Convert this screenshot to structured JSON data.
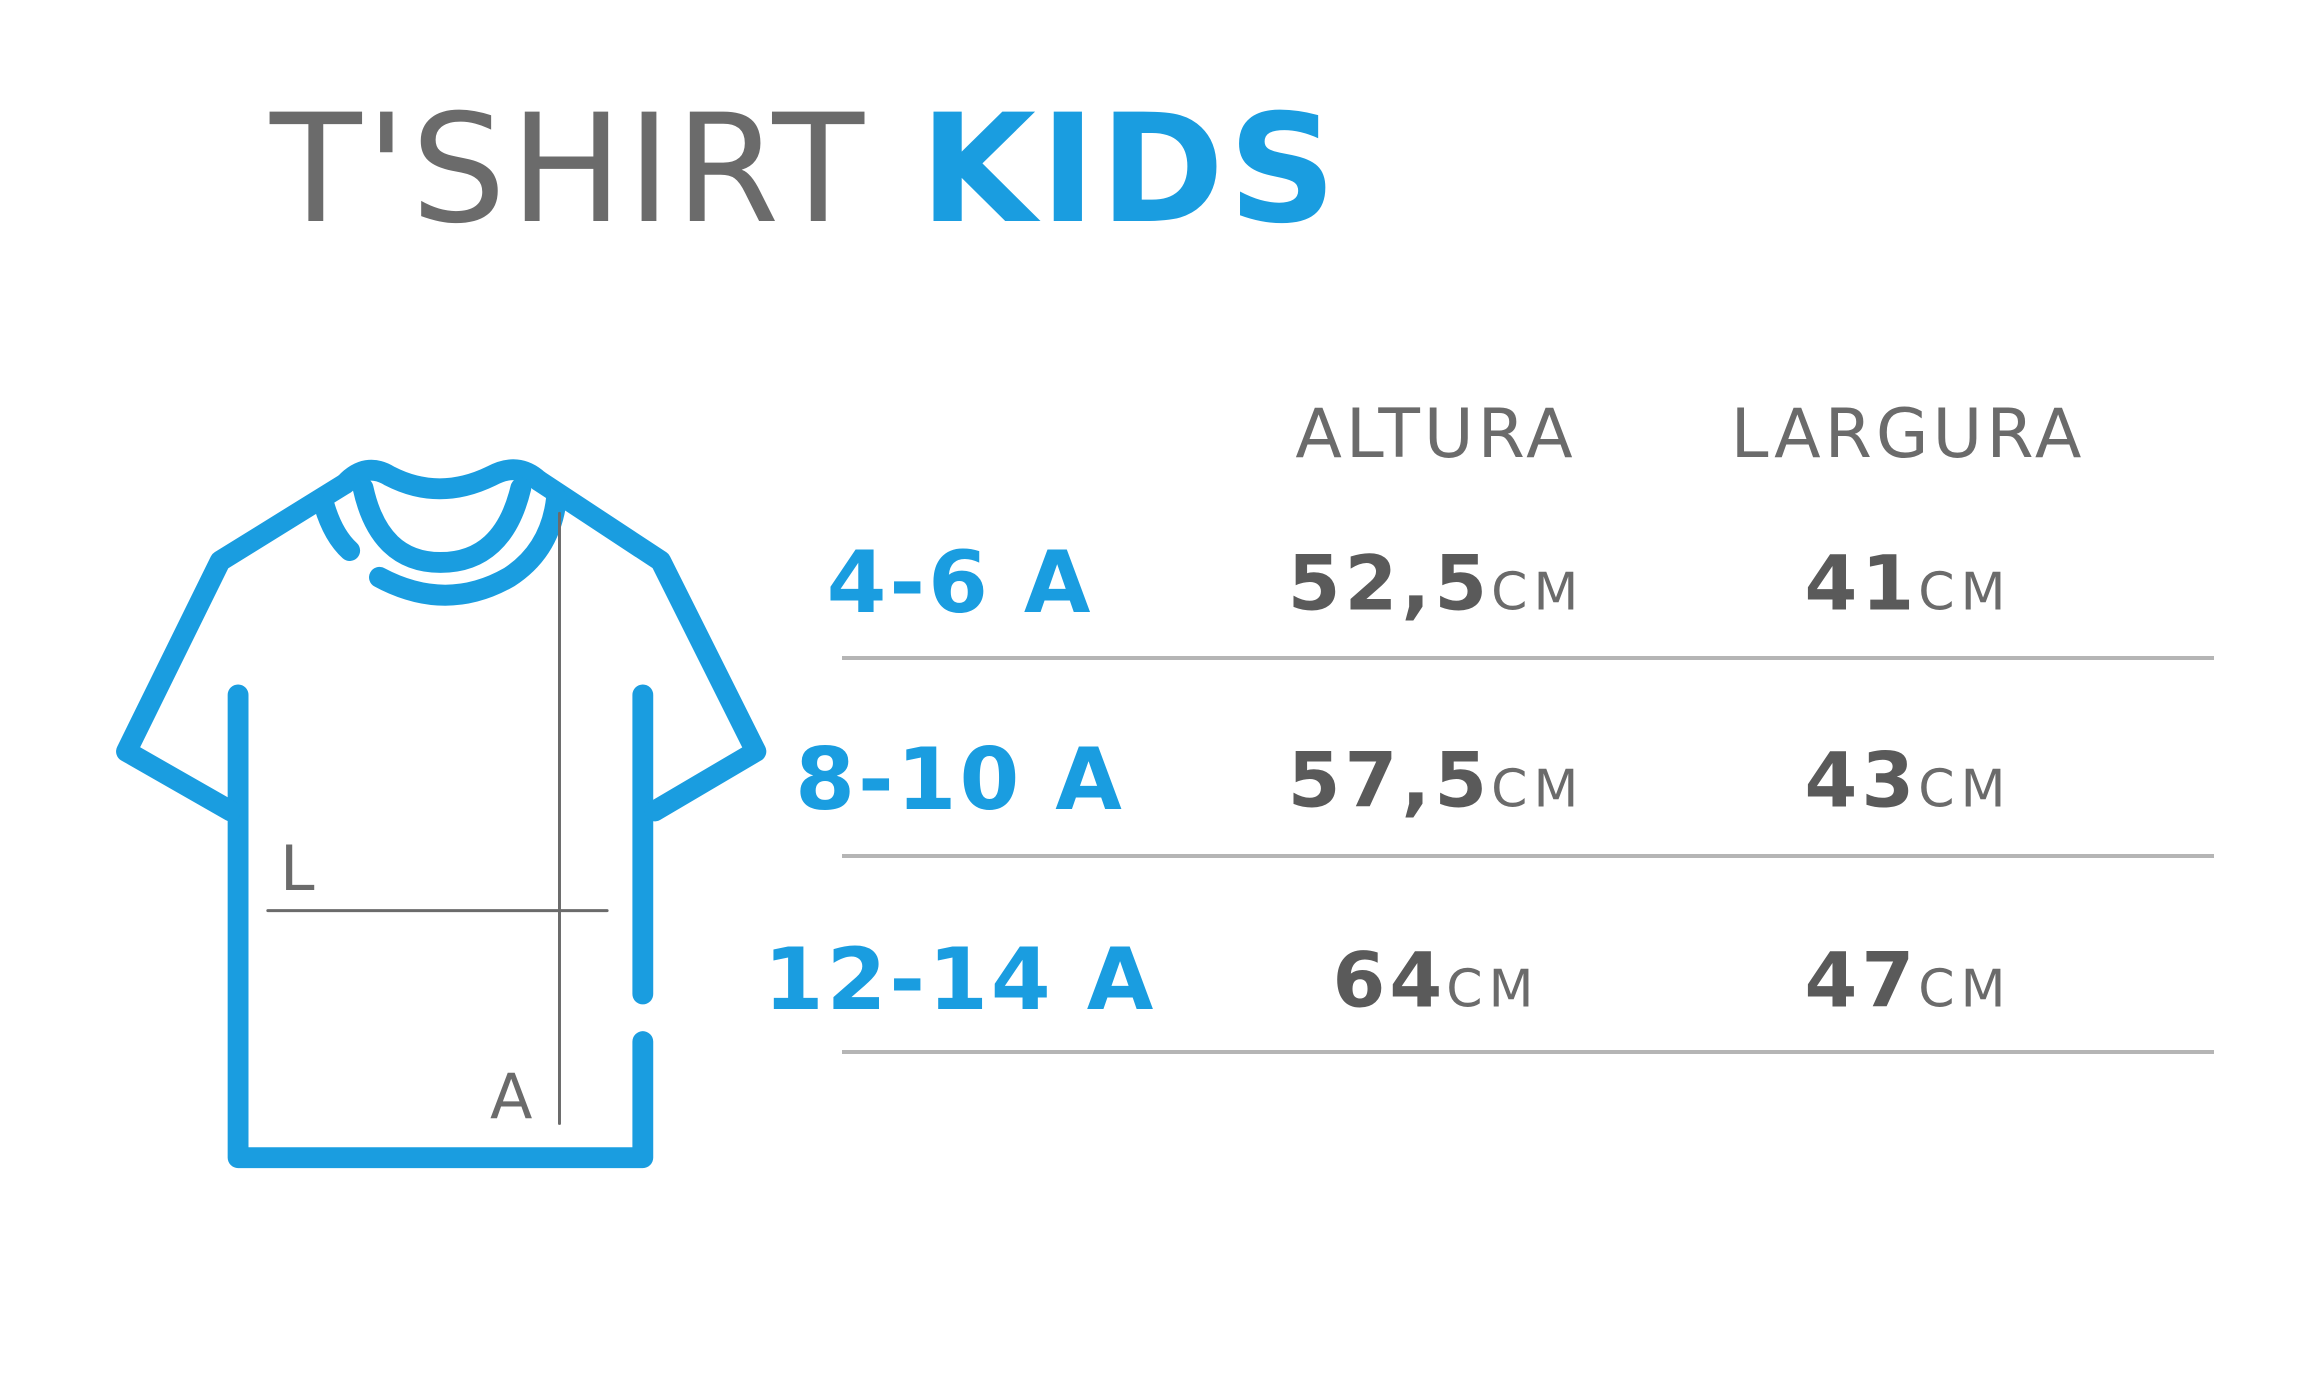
{
  "title": {
    "main": "T'SHIRT",
    "accent": "KIDS"
  },
  "diagram": {
    "width_label": "L",
    "height_label": "A"
  },
  "table": {
    "header": [
      "ALTURA",
      "LARGURA"
    ],
    "unit": "CM",
    "rows": [
      {
        "size": "4-6 A",
        "values": [
          "52,5",
          "41"
        ]
      },
      {
        "size": "8-10 A",
        "values": [
          "57,5",
          "43"
        ]
      },
      {
        "size": "12-14 A",
        "values": [
          "64",
          "47"
        ]
      }
    ]
  }
}
